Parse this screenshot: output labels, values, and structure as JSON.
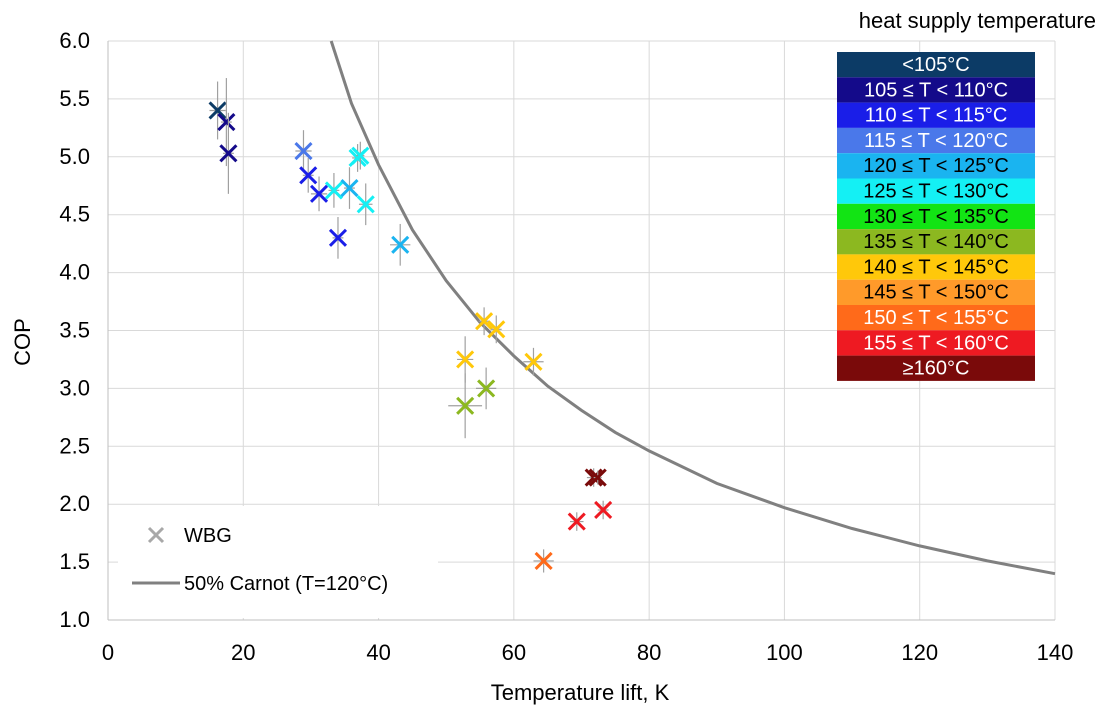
{
  "chart_data": {
    "type": "scatter",
    "title": "",
    "xlabel": "Temperature lift, K",
    "ylabel": "COP",
    "xlim": [
      0,
      140
    ],
    "ylim": [
      1.0,
      6.0
    ],
    "x_ticks": [
      "0",
      "20",
      "40",
      "60",
      "80",
      "100",
      "120",
      "140"
    ],
    "y_ticks": [
      "1.0",
      "1.5",
      "2.0",
      "2.5",
      "3.0",
      "3.5",
      "4.0",
      "4.5",
      "5.0",
      "5.5",
      "6.0"
    ],
    "grid": "vertical-and-horizontal",
    "legend_title": "heat supply temperature",
    "legend_classes": [
      {
        "label": "<105°C",
        "color": "#0c3b66"
      },
      {
        "label": "105 ≤ T < 110°C",
        "color": "#140a8a"
      },
      {
        "label": "110 ≤ T < 115°C",
        "color": "#1a1ee8"
      },
      {
        "label": "115 ≤ T < 120°C",
        "color": "#4a78ea"
      },
      {
        "label": "120 ≤ T < 125°C",
        "color": "#1ab4f0"
      },
      {
        "label": "125 ≤ T < 130°C",
        "color": "#14f0f4"
      },
      {
        "label": "130 ≤ T < 135°C",
        "color": "#12e414"
      },
      {
        "label": "135 ≤ T < 140°C",
        "color": "#8cb820"
      },
      {
        "label": "140 ≤ T < 145°C",
        "color": "#ffc80a"
      },
      {
        "label": "145 ≤ T < 150°C",
        "color": "#ff9a2a"
      },
      {
        "label": "150 ≤ T < 155°C",
        "color": "#ff6a1a"
      },
      {
        "label": "155 ≤ T < 160°C",
        "color": "#ee1a22"
      },
      {
        "label": "≥160°C",
        "color": "#7a0a0a"
      }
    ],
    "legend_inner": [
      {
        "label": "WBG",
        "kind": "marker",
        "color": "#a8a8a8"
      },
      {
        "label": "50% Carnot (T=120°C)",
        "kind": "line",
        "color": "#808080"
      }
    ],
    "points": [
      {
        "x": 16.2,
        "y": 5.4,
        "cls": 0,
        "xerr": 1.2,
        "yerr": 0.25
      },
      {
        "x": 17.5,
        "y": 5.3,
        "cls": 1,
        "xerr": 0.8,
        "yerr": 0.38
      },
      {
        "x": 17.8,
        "y": 5.03,
        "cls": 1,
        "xerr": 0.8,
        "yerr": 0.35
      },
      {
        "x": 28.9,
        "y": 5.05,
        "cls": 3,
        "xerr": 1.2,
        "yerr": 0.18
      },
      {
        "x": 29.6,
        "y": 4.84,
        "cls": 2,
        "xerr": 0.8,
        "yerr": 0.15
      },
      {
        "x": 31.2,
        "y": 4.68,
        "cls": 2,
        "xerr": 1.2,
        "yerr": 0.15
      },
      {
        "x": 33.4,
        "y": 4.71,
        "cls": 5,
        "xerr": 0.8,
        "yerr": 0.15
      },
      {
        "x": 34.0,
        "y": 4.3,
        "cls": 2,
        "xerr": 0.8,
        "yerr": 0.18
      },
      {
        "x": 35.7,
        "y": 4.73,
        "cls": 4,
        "xerr": 0.8,
        "yerr": 0.18
      },
      {
        "x": 36.9,
        "y": 4.99,
        "cls": 5,
        "xerr": 0.8,
        "yerr": 0.12
      },
      {
        "x": 37.3,
        "y": 5.01,
        "cls": 5,
        "xerr": 0.6,
        "yerr": 0.12
      },
      {
        "x": 38.1,
        "y": 4.59,
        "cls": 5,
        "xerr": 1.0,
        "yerr": 0.18
      },
      {
        "x": 43.2,
        "y": 4.24,
        "cls": 4,
        "xerr": 1.5,
        "yerr": 0.18
      },
      {
        "x": 52.8,
        "y": 3.25,
        "cls": 8,
        "xerr": 1.2,
        "yerr": 0.2
      },
      {
        "x": 52.8,
        "y": 2.85,
        "cls": 7,
        "xerr": 2.5,
        "yerr": 0.28
      },
      {
        "x": 55.6,
        "y": 3.58,
        "cls": 8,
        "xerr": 0.8,
        "yerr": 0.12
      },
      {
        "x": 55.9,
        "y": 3.0,
        "cls": 7,
        "xerr": 1.5,
        "yerr": 0.18
      },
      {
        "x": 57.4,
        "y": 3.51,
        "cls": 8,
        "xerr": 0.8,
        "yerr": 0.12
      },
      {
        "x": 62.9,
        "y": 3.23,
        "cls": 8,
        "xerr": 1.5,
        "yerr": 0.12
      },
      {
        "x": 64.4,
        "y": 1.51,
        "cls": 10,
        "xerr": 1.5,
        "yerr": 0.1
      },
      {
        "x": 69.3,
        "y": 1.85,
        "cls": 11,
        "xerr": 1.0,
        "yerr": 0.08
      },
      {
        "x": 71.8,
        "y": 2.23,
        "cls": 12,
        "xerr": 1.0,
        "yerr": 0.08
      },
      {
        "x": 72.4,
        "y": 2.23,
        "cls": 12,
        "xerr": 0.6,
        "yerr": 0.06
      },
      {
        "x": 73.2,
        "y": 1.95,
        "cls": 11,
        "xerr": 0.8,
        "yerr": 0.08
      }
    ],
    "carnot_curve": {
      "name": "50% Carnot (T=120°C)",
      "x": [
        33,
        36,
        40,
        45,
        50,
        55,
        60,
        65,
        70,
        75,
        80,
        90,
        100,
        110,
        120,
        130,
        140
      ],
      "y": [
        6.0,
        5.46,
        4.93,
        4.37,
        3.93,
        3.57,
        3.28,
        3.02,
        2.81,
        2.62,
        2.46,
        2.18,
        1.97,
        1.79,
        1.64,
        1.51,
        1.4
      ]
    }
  }
}
